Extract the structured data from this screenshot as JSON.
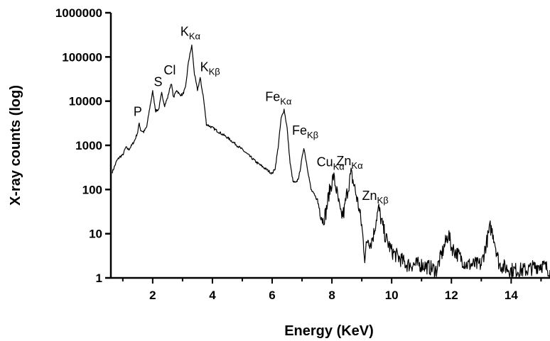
{
  "chart_data": {
    "type": "line",
    "xlabel": "Energy (KeV)",
    "ylabel": "X-ray counts (log)",
    "xlim": [
      0.6,
      15.3
    ],
    "ylim": [
      1,
      1000000
    ],
    "yscale": "log",
    "x_ticks": [
      "2",
      "4",
      "6",
      "8",
      "10",
      "12",
      "14"
    ],
    "y_ticks": [
      "1",
      "10",
      "100",
      "1000",
      "10000",
      "100000",
      "1000000"
    ],
    "grid": false,
    "line_color": "#000000",
    "peaks": [
      {
        "main": "P",
        "sub": "",
        "energy": 1.55,
        "counts": 3200
      },
      {
        "main": "S",
        "sub": "",
        "energy": 2.3,
        "counts": 15000
      },
      {
        "main": "Cl",
        "sub": "",
        "energy": 2.62,
        "counts": 26000
      },
      {
        "main": "K",
        "sub": "Kα",
        "energy": 3.31,
        "counts": 180000
      },
      {
        "main": "K",
        "sub": "Kβ",
        "energy": 3.59,
        "counts": 33000
      },
      {
        "main": "Fe",
        "sub": "Kα",
        "energy": 6.4,
        "counts": 6500
      },
      {
        "main": "Fe",
        "sub": "Kβ",
        "energy": 7.06,
        "counts": 900
      },
      {
        "main": "Cu",
        "sub": "Kα",
        "energy": 8.05,
        "counts": 200
      },
      {
        "main": "Zn",
        "sub": "Kα",
        "energy": 8.64,
        "counts": 230
      },
      {
        "main": "Zn",
        "sub": "Kβ",
        "energy": 9.57,
        "counts": 37
      }
    ],
    "series": [
      {
        "x": [
          0.65,
          0.8,
          0.9,
          1.0,
          1.1,
          1.2,
          1.3,
          1.4,
          1.5,
          1.55,
          1.6,
          1.7,
          1.8,
          1.9,
          2.0,
          2.1,
          2.2,
          2.3,
          2.4,
          2.5,
          2.62,
          2.7,
          2.8,
          2.9,
          3.0,
          3.1,
          3.2,
          3.31,
          3.4,
          3.5,
          3.59,
          3.7,
          3.8,
          4.0,
          4.5,
          5.0,
          5.5,
          6.0,
          6.1,
          6.2,
          6.3,
          6.4,
          6.5,
          6.6,
          6.7,
          6.8,
          6.9,
          7.06,
          7.15,
          7.3,
          7.5,
          7.7,
          7.8,
          7.9,
          8.05,
          8.15,
          8.3,
          8.4,
          8.5,
          8.64,
          8.75,
          8.9,
          9.0,
          9.1,
          9.2,
          9.3,
          9.4,
          9.5,
          9.57,
          9.65,
          9.8,
          10.0,
          10.5,
          11.0,
          11.5,
          11.9,
          12.0,
          12.5,
          13.0,
          13.3,
          13.4,
          13.6,
          14.0,
          14.5,
          15.0,
          15.3
        ],
        "y": [
          250,
          450,
          550,
          600,
          900,
          800,
          1000,
          1300,
          2000,
          3200,
          2200,
          2000,
          2600,
          7000,
          16500,
          6000,
          6500,
          15000,
          8000,
          12000,
          26000,
          12000,
          18000,
          14000,
          14000,
          20000,
          80000,
          180000,
          40000,
          18000,
          33000,
          12000,
          3000,
          2500,
          1500,
          800,
          400,
          230,
          300,
          900,
          4000,
          6500,
          2500,
          400,
          150,
          140,
          200,
          900,
          400,
          100,
          60,
          20,
          30,
          80,
          200,
          100,
          25,
          30,
          80,
          230,
          120,
          40,
          15,
          3,
          8,
          6,
          10,
          25,
          37,
          20,
          8,
          4,
          2,
          2,
          1.5,
          10,
          5,
          2,
          2,
          14,
          10,
          2,
          1.5,
          1.5,
          2,
          1.5
        ]
      }
    ]
  }
}
